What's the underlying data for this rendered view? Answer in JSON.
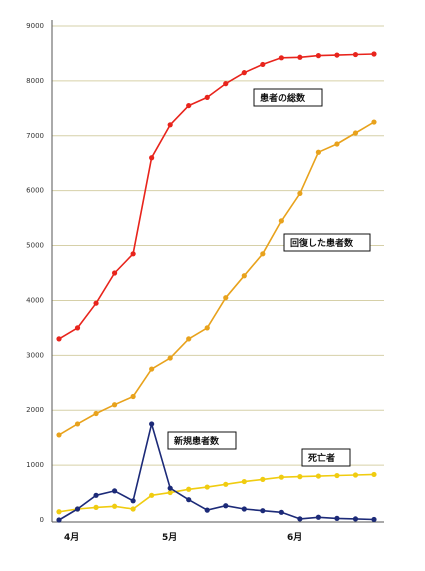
{
  "chart_data": {
    "type": "line",
    "x_labels": [
      "4月",
      "5月",
      "6月"
    ],
    "ylim": [
      0,
      9000
    ],
    "yticks": [
      0,
      1000,
      2000,
      3000,
      4000,
      5000,
      6000,
      7000,
      8000,
      9000
    ],
    "grid": true,
    "series": [
      {
        "name": "患者の総数",
        "color": "#e8241c",
        "values": [
          3300,
          3500,
          3950,
          4500,
          4850,
          6600,
          7200,
          7550,
          7700,
          7950,
          8150,
          8300,
          8420,
          8430,
          8460,
          8470,
          8480,
          8490
        ]
      },
      {
        "name": "回復した患者数",
        "color": "#e8a21c",
        "values": [
          1550,
          1750,
          1940,
          2100,
          2250,
          2750,
          2950,
          3300,
          3500,
          4050,
          4450,
          4850,
          5450,
          5950,
          6700,
          6850,
          7050,
          7250
        ]
      },
      {
        "name": "死亡者",
        "color": "#f0cc10",
        "values": [
          150,
          200,
          230,
          250,
          200,
          450,
          500,
          560,
          600,
          650,
          700,
          740,
          780,
          790,
          800,
          810,
          820,
          830
        ]
      },
      {
        "name": "新規患者数",
        "color": "#1c2a78",
        "values": [
          0,
          200,
          450,
          530,
          350,
          1750,
          580,
          370,
          180,
          260,
          200,
          170,
          140,
          20,
          50,
          30,
          20,
          10
        ]
      }
    ]
  }
}
